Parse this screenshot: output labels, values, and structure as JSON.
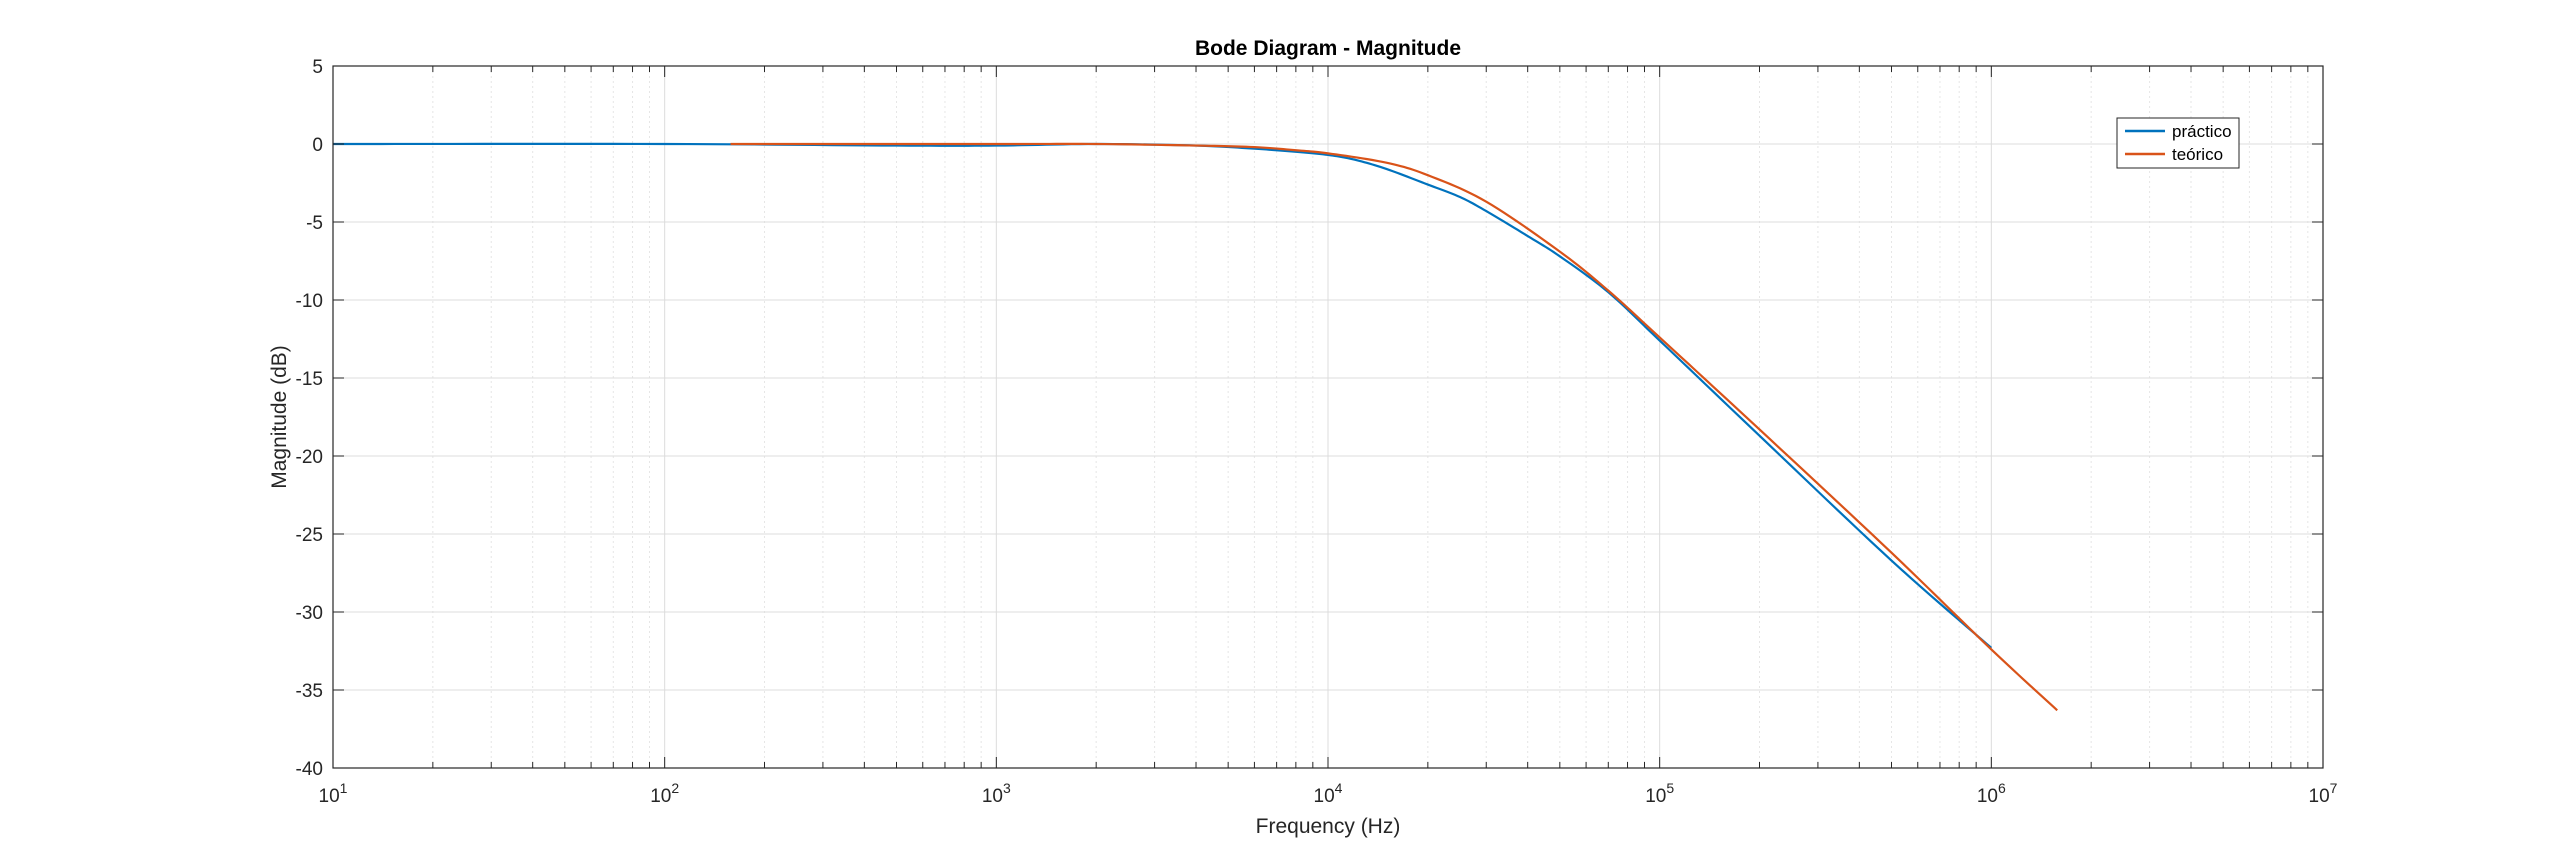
{
  "chart_data": {
    "type": "line",
    "title": "Bode Diagram - Magnitude",
    "xlabel": "Frequency (Hz)",
    "ylabel": "Magnitude (dB)",
    "xscale": "log",
    "xlim": [
      10,
      10000000
    ],
    "ylim": [
      -40,
      5
    ],
    "grid": true,
    "minor_grid": true,
    "legend_position": "top-right",
    "x_ticks": [
      {
        "base": "10",
        "exp": "1"
      },
      {
        "base": "10",
        "exp": "2"
      },
      {
        "base": "10",
        "exp": "3"
      },
      {
        "base": "10",
        "exp": "4"
      },
      {
        "base": "10",
        "exp": "5"
      },
      {
        "base": "10",
        "exp": "6"
      },
      {
        "base": "10",
        "exp": "7"
      }
    ],
    "y_ticks": [
      "5",
      "0",
      "-5",
      "-10",
      "-15",
      "-20",
      "-25",
      "-30",
      "-35",
      "-40"
    ],
    "series": [
      {
        "name": "práctico",
        "color": "#0072BD",
        "x": [
          10,
          100,
          500,
          1000,
          2000,
          4000,
          6000,
          8000,
          10000,
          12000,
          15000,
          20000,
          25000,
          30000,
          40000,
          50000,
          70000,
          100000,
          200000,
          500000,
          1000000
        ],
        "y": [
          0,
          0,
          -0.1,
          -0.1,
          0,
          -0.1,
          -0.3,
          -0.5,
          -0.7,
          -1.0,
          -1.6,
          -2.6,
          -3.4,
          -4.3,
          -5.9,
          -7.2,
          -9.5,
          -12.6,
          -18.7,
          -26.7,
          -32.3
        ]
      },
      {
        "name": "teórico",
        "color": "#D95319",
        "x": [
          158,
          1000,
          2000,
          4000,
          6000,
          8000,
          10000,
          15000,
          20000,
          30000,
          50000,
          70000,
          100000,
          200000,
          500000,
          1000000,
          1580000
        ],
        "y": [
          0,
          0,
          0,
          -0.1,
          -0.2,
          -0.4,
          -0.6,
          -1.2,
          -2.0,
          -3.7,
          -6.9,
          -9.4,
          -12.4,
          -18.3,
          -26.2,
          -32.4,
          -36.3
        ]
      }
    ]
  }
}
